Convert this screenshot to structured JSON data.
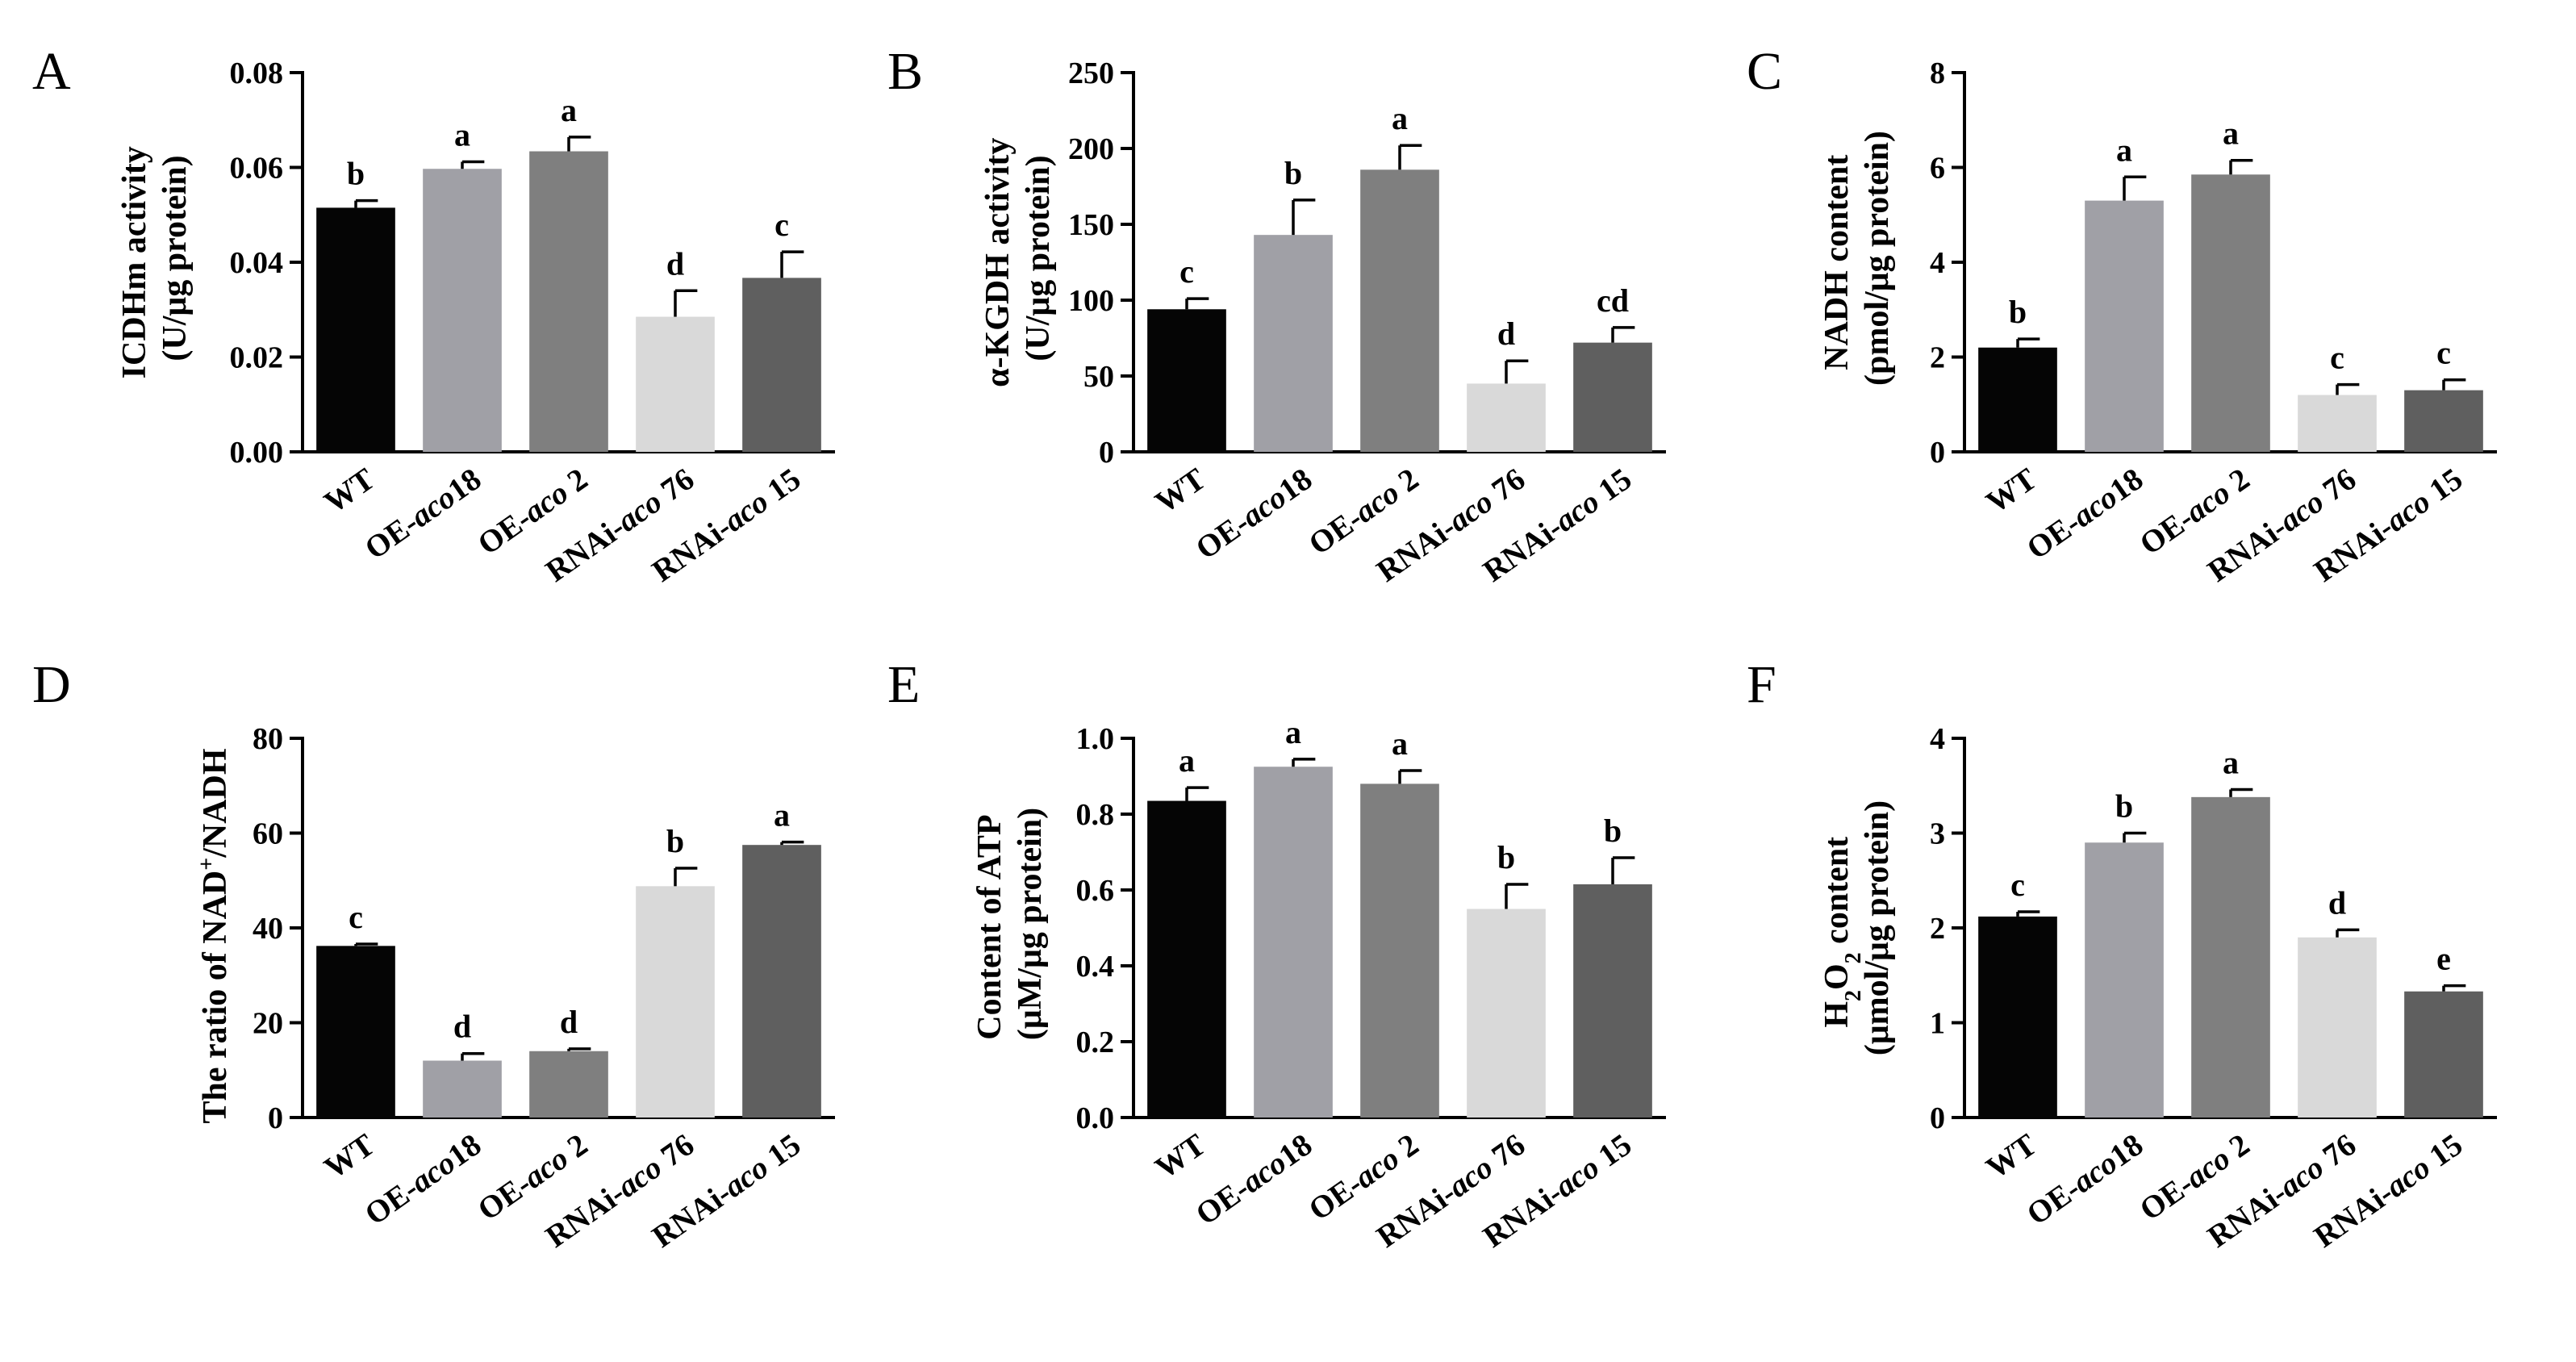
{
  "colors": [
    "#050505",
    "#a0a0a6",
    "#7f7f7f",
    "#d9d9d9",
    "#5f5f5f"
  ],
  "categories": [
    {
      "pre": "WT",
      "it": "",
      "post": ""
    },
    {
      "pre": "OE-",
      "it": "aco",
      "post": "18"
    },
    {
      "pre": "OE-",
      "it": "aco",
      "post": " 2"
    },
    {
      "pre": "RNAi-",
      "it": "aco",
      "post": " 76"
    },
    {
      "pre": "RNAi-",
      "it": "aco",
      "post": " 15"
    }
  ],
  "chart_data": [
    {
      "type": "bar",
      "panel": "A",
      "ylabel": {
        "line1": "ICDHm activity",
        "line2": "(U/μg protein)"
      },
      "ylim": [
        0,
        0.08
      ],
      "yticks": [
        "0.00",
        "0.02",
        "0.04",
        "0.06",
        "0.08"
      ],
      "categories": [
        "WT",
        "OE-aco18",
        "OE-aco 2",
        "RNAi-aco 76",
        "RNAi-aco 15"
      ],
      "values": [
        0.0515,
        0.0597,
        0.0634,
        0.0285,
        0.0367
      ],
      "errors": [
        0.0015,
        0.0015,
        0.003,
        0.0055,
        0.0055
      ],
      "labels": [
        "b",
        "a",
        "a",
        "d",
        "c"
      ]
    },
    {
      "type": "bar",
      "panel": "B",
      "ylabel": {
        "line1": "α-KGDH activity",
        "line2": "(U/μg protein)"
      },
      "ylim": [
        0,
        250
      ],
      "yticks": [
        "0",
        "50",
        "100",
        "150",
        "200",
        "250"
      ],
      "categories": [
        "WT",
        "OE-aco18",
        "OE-aco 2",
        "RNAi-aco 76",
        "RNAi-aco 15"
      ],
      "values": [
        94,
        143,
        186,
        45,
        72
      ],
      "errors": [
        7,
        23,
        16,
        15,
        10
      ],
      "labels": [
        "c",
        "b",
        "a",
        "d",
        "cd"
      ]
    },
    {
      "type": "bar",
      "panel": "C",
      "ylabel": {
        "line1": "NADH content",
        "line2": "(pmol/μg protein)"
      },
      "ylim": [
        0,
        8
      ],
      "yticks": [
        "0",
        "2",
        "4",
        "6",
        "8"
      ],
      "categories": [
        "WT",
        "OE-aco18",
        "OE-aco 2",
        "RNAi-aco 76",
        "RNAi-aco 15"
      ],
      "values": [
        2.2,
        5.3,
        5.85,
        1.2,
        1.3
      ],
      "errors": [
        0.18,
        0.5,
        0.3,
        0.22,
        0.22
      ],
      "labels": [
        "b",
        "a",
        "a",
        "c",
        "c"
      ]
    },
    {
      "type": "bar",
      "panel": "D",
      "ylabel": {
        "line1": "The ratio of NAD",
        "sup": "+",
        "line1b": "/NADH"
      },
      "ylim": [
        0,
        80
      ],
      "yticks": [
        "0",
        "20",
        "40",
        "60",
        "80"
      ],
      "categories": [
        "WT",
        "OE-aco18",
        "OE-aco 2",
        "RNAi-aco 76",
        "RNAi-aco 15"
      ],
      "values": [
        36.2,
        12,
        14,
        48.8,
        57.5
      ],
      "errors": [
        0.4,
        1.5,
        0.5,
        3.8,
        0.6
      ],
      "labels": [
        "c",
        "d",
        "d",
        "b",
        "a"
      ]
    },
    {
      "type": "bar",
      "panel": "E",
      "ylabel": {
        "line1": "Content of ATP",
        "line2": "(μM/μg protein)"
      },
      "ylim": [
        0,
        1.0
      ],
      "yticks": [
        "0.0",
        "0.2",
        "0.4",
        "0.6",
        "0.8",
        "1.0"
      ],
      "categories": [
        "WT",
        "OE-aco18",
        "OE-aco 2",
        "RNAi-aco 76",
        "RNAi-aco 15"
      ],
      "values": [
        0.835,
        0.925,
        0.88,
        0.55,
        0.615
      ],
      "errors": [
        0.035,
        0.02,
        0.035,
        0.065,
        0.07
      ],
      "labels": [
        "a",
        "a",
        "a",
        "b",
        "b"
      ]
    },
    {
      "type": "bar",
      "panel": "F",
      "ylabel": {
        "line1a": "H",
        "sub1": "2",
        "line1b": "O",
        "sub2": "2",
        "line1c": " content",
        "line2": "(μmol/μg protein)"
      },
      "ylim": [
        0,
        4
      ],
      "yticks": [
        "0",
        "1",
        "2",
        "3",
        "4"
      ],
      "categories": [
        "WT",
        "OE-aco18",
        "OE-aco 2",
        "RNAi-aco 76",
        "RNAi-aco 15"
      ],
      "values": [
        2.12,
        2.9,
        3.38,
        1.9,
        1.33
      ],
      "errors": [
        0.05,
        0.1,
        0.08,
        0.08,
        0.06
      ],
      "labels": [
        "c",
        "b",
        "a",
        "d",
        "e"
      ]
    }
  ]
}
